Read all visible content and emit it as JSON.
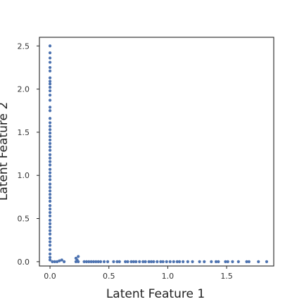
{
  "chart_data": {
    "type": "scatter",
    "title": "",
    "xlabel": "Latent Feature 1",
    "ylabel": "Latent Feature 2",
    "xlim": [
      -0.09,
      1.9
    ],
    "ylim": [
      -0.05,
      2.6
    ],
    "xticks": [
      0.0,
      0.5,
      1.0,
      1.5
    ],
    "xtick_labels": [
      "0.0",
      "0.5",
      "1.0",
      "1.5"
    ],
    "yticks": [
      0.0,
      0.5,
      1.0,
      1.5,
      2.0,
      2.5
    ],
    "ytick_labels": [
      "0.0",
      "0.5",
      "1.0",
      "1.5",
      "2.0",
      "2.5"
    ],
    "grid": false,
    "marker_color": "#4c72b0",
    "series": [
      {
        "points": [
          [
            0.0,
            2.5
          ],
          [
            0.0,
            2.42
          ],
          [
            0.0,
            2.36
          ],
          [
            0.0,
            2.31
          ],
          [
            0.0,
            2.25
          ],
          [
            0.0,
            2.21
          ],
          [
            0.0,
            2.13
          ],
          [
            0.0,
            2.09
          ],
          [
            0.0,
            2.06
          ],
          [
            0.0,
            2.02
          ],
          [
            0.0,
            1.98
          ],
          [
            0.0,
            1.93
          ],
          [
            0.0,
            1.87
          ],
          [
            0.0,
            1.79
          ],
          [
            0.0,
            1.75
          ],
          [
            0.0,
            1.66
          ],
          [
            0.0,
            1.61
          ],
          [
            0.0,
            1.57
          ],
          [
            0.0,
            1.53
          ],
          [
            0.0,
            1.49
          ],
          [
            0.0,
            1.45
          ],
          [
            0.0,
            1.41
          ],
          [
            0.0,
            1.37
          ],
          [
            0.0,
            1.33
          ],
          [
            0.0,
            1.29
          ],
          [
            0.0,
            1.24
          ],
          [
            0.0,
            1.2
          ],
          [
            0.0,
            1.16
          ],
          [
            0.0,
            1.12
          ],
          [
            0.0,
            1.07
          ],
          [
            0.0,
            1.03
          ],
          [
            0.0,
            0.99
          ],
          [
            0.0,
            0.95
          ],
          [
            0.0,
            0.9
          ],
          [
            0.0,
            0.86
          ],
          [
            0.0,
            0.82
          ],
          [
            0.0,
            0.78
          ],
          [
            0.0,
            0.74
          ],
          [
            0.0,
            0.7
          ],
          [
            0.0,
            0.65
          ],
          [
            0.0,
            0.61
          ],
          [
            0.0,
            0.57
          ],
          [
            0.0,
            0.53
          ],
          [
            0.0,
            0.48
          ],
          [
            0.0,
            0.44
          ],
          [
            0.0,
            0.4
          ],
          [
            0.0,
            0.36
          ],
          [
            0.0,
            0.32
          ],
          [
            0.0,
            0.27
          ],
          [
            0.0,
            0.23
          ],
          [
            0.0,
            0.19
          ],
          [
            0.0,
            0.14
          ],
          [
            0.0,
            0.09
          ],
          [
            0.0,
            0.05
          ],
          [
            0.0,
            0.02
          ],
          [
            0.02,
            0.0
          ],
          [
            0.04,
            0.0
          ],
          [
            0.06,
            0.0
          ],
          [
            0.08,
            0.01
          ],
          [
            0.1,
            0.02
          ],
          [
            0.12,
            0.0
          ],
          [
            0.22,
            0.0
          ],
          [
            0.22,
            0.04
          ],
          [
            0.24,
            0.06
          ],
          [
            0.23,
            0.02
          ],
          [
            0.24,
            0.0
          ],
          [
            0.29,
            0.0
          ],
          [
            0.31,
            0.0
          ],
          [
            0.33,
            0.0
          ],
          [
            0.35,
            0.0
          ],
          [
            0.37,
            0.0
          ],
          [
            0.39,
            0.0
          ],
          [
            0.41,
            0.0
          ],
          [
            0.43,
            0.0
          ],
          [
            0.46,
            0.0
          ],
          [
            0.49,
            0.0
          ],
          [
            0.54,
            0.0
          ],
          [
            0.57,
            0.0
          ],
          [
            0.59,
            0.0
          ],
          [
            0.64,
            0.0
          ],
          [
            0.66,
            0.0
          ],
          [
            0.69,
            0.0
          ],
          [
            0.71,
            0.0
          ],
          [
            0.73,
            0.0
          ],
          [
            0.76,
            0.0
          ],
          [
            0.79,
            0.0
          ],
          [
            0.81,
            0.0
          ],
          [
            0.84,
            0.0
          ],
          [
            0.86,
            0.0
          ],
          [
            0.88,
            0.0
          ],
          [
            0.91,
            0.0
          ],
          [
            0.94,
            0.0
          ],
          [
            0.96,
            0.0
          ],
          [
            0.99,
            0.0
          ],
          [
            1.02,
            0.0
          ],
          [
            1.05,
            0.0
          ],
          [
            1.08,
            0.0
          ],
          [
            1.1,
            0.0
          ],
          [
            1.13,
            0.0
          ],
          [
            1.17,
            0.0
          ],
          [
            1.21,
            0.0
          ],
          [
            1.27,
            0.0
          ],
          [
            1.31,
            0.0
          ],
          [
            1.37,
            0.0
          ],
          [
            1.41,
            0.0
          ],
          [
            1.43,
            0.0
          ],
          [
            1.49,
            0.0
          ],
          [
            1.51,
            0.0
          ],
          [
            1.55,
            0.0
          ],
          [
            1.6,
            0.0
          ],
          [
            1.67,
            0.0
          ],
          [
            1.69,
            0.0
          ],
          [
            1.77,
            0.0
          ],
          [
            1.84,
            0.0
          ]
        ]
      }
    ]
  }
}
